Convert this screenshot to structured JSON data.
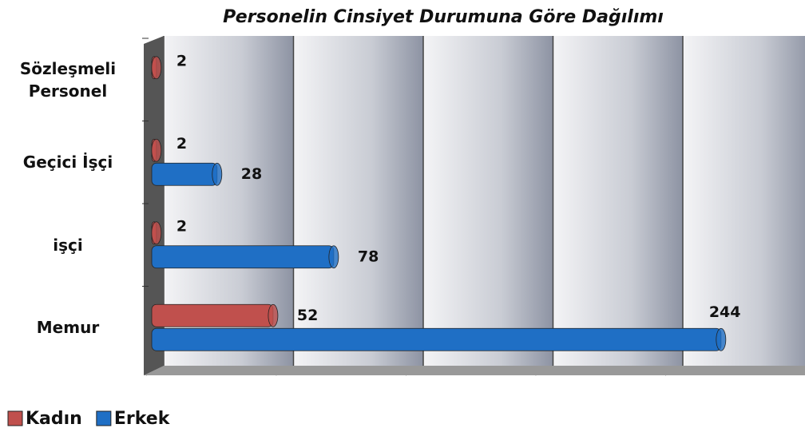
{
  "chart_data": {
    "type": "hbar",
    "title": "Personelin Cinsiyet Durumuna Göre Dağılımı",
    "categories": [
      "Sözleşmeli Personel",
      "Geçici İşçi",
      "işçi",
      "Memur"
    ],
    "series": [
      {
        "name": "Kadın",
        "color": "#c0504d",
        "values": [
          2,
          2,
          2,
          52
        ]
      },
      {
        "name": "Erkek",
        "color": "#1f6fc5",
        "values": [
          null,
          28,
          78,
          244
        ]
      }
    ],
    "xlim": [
      0,
      280
    ],
    "legend": "bottom-left"
  }
}
